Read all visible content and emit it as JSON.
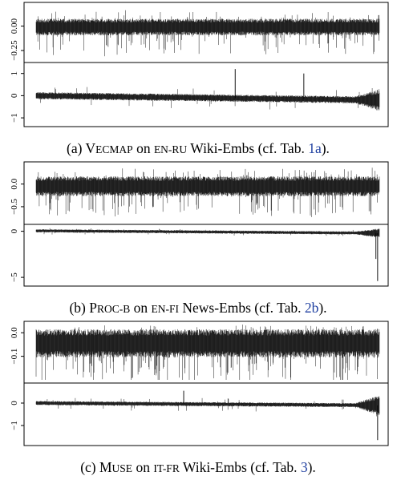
{
  "chart_data": [
    {
      "type": "line",
      "caption": {
        "prefix": "(a) V",
        "method_sc": "ECMAP",
        "on": " on ",
        "pair_sc": "EN-RU",
        "rest": " Wiki-Embs (cf. Tab. ",
        "ref": "1a",
        "end": ")."
      },
      "panels": [
        {
          "ylim": [
            -0.34,
            0.21
          ],
          "yticks": [
            0.0,
            -0.25
          ],
          "ytick_labels": [
            "0.00",
            "−0.25"
          ],
          "series": {
            "n": 1200,
            "center": -0.01,
            "amp": 0.085,
            "spike_prob": 0.08,
            "spike_down": 0.22,
            "spike_up": 0.09,
            "seed": 11
          }
        },
        {
          "ylim": [
            -1.25,
            1.35
          ],
          "yticks": [
            1,
            0,
            -1
          ],
          "ytick_labels": [
            "1",
            "0",
            "−1"
          ],
          "series": {
            "n": 1200,
            "center_start": 0.0,
            "center_end": -0.2,
            "amp": 0.16,
            "amp_end": 0.5,
            "spike_prob": 0.02,
            "spike_down": 0.4,
            "spike_up": 0.3,
            "seed": 12
          },
          "spikes": [
            {
              "x": 0.58,
              "y": 1.2
            },
            {
              "x": 0.78,
              "y": 1.0
            }
          ]
        }
      ]
    },
    {
      "type": "line",
      "caption": {
        "prefix": "(b) P",
        "method_sc": "ROC-B",
        "on": " on ",
        "pair_sc": "EN-FI",
        "rest": " News-Embs (cf. Tab. ",
        "ref": "2b",
        "end": ")."
      },
      "panels": [
        {
          "ylim": [
            -0.82,
            0.42
          ],
          "yticks": [
            0.0,
            -0.5
          ],
          "ytick_labels": [
            "0.0",
            "−0.5"
          ],
          "series": {
            "n": 1200,
            "center": -0.05,
            "amp": 0.22,
            "spike_prob": 0.1,
            "spike_down": 0.5,
            "spike_up": 0.22,
            "seed": 21
          }
        },
        {
          "ylim": [
            -5.6,
            0.4
          ],
          "yticks": [
            0,
            -5
          ],
          "ytick_labels": [
            "0",
            "−5"
          ],
          "series": {
            "n": 1200,
            "center_start": 0.05,
            "center_end": -0.2,
            "amp": 0.17,
            "amp_end": 0.5,
            "spike_prob": 0.02,
            "spike_down": 0.3,
            "spike_up": 0.2,
            "seed": 22
          },
          "spikes": [
            {
              "x": 0.995,
              "y": -5.4
            },
            {
              "x": 0.99,
              "y": -3.0
            }
          ]
        }
      ]
    },
    {
      "type": "line",
      "caption": {
        "prefix": "(c) M",
        "method_sc": "USE",
        "on": " on ",
        "pair_sc": "IT-FR",
        "rest": " Wiki-Embs (cf. Tab. ",
        "ref": "3",
        "end": ")."
      },
      "panels": [
        {
          "ylim": [
            -0.2,
            0.035
          ],
          "yticks": [
            0.0,
            -0.1
          ],
          "ytick_labels": [
            "0.0",
            "−0.1"
          ],
          "series": {
            "n": 1200,
            "center": -0.045,
            "amp": 0.06,
            "spike_prob": 0.12,
            "spike_down": 0.13,
            "spike_up": 0.025,
            "seed": 31
          }
        },
        {
          "ylim": [
            -1.75,
            0.75
          ],
          "yticks": [
            0,
            -1
          ],
          "ytick_labels": [
            "0",
            "−1"
          ],
          "series": {
            "n": 1200,
            "center_start": 0.0,
            "center_end": -0.1,
            "amp": 0.09,
            "amp_end": 0.45,
            "spike_prob": 0.02,
            "spike_down": 0.25,
            "spike_up": 0.2,
            "seed": 32
          },
          "spikes": [
            {
              "x": 0.43,
              "y": 0.55
            },
            {
              "x": 0.995,
              "y": -1.65
            }
          ]
        }
      ]
    }
  ]
}
